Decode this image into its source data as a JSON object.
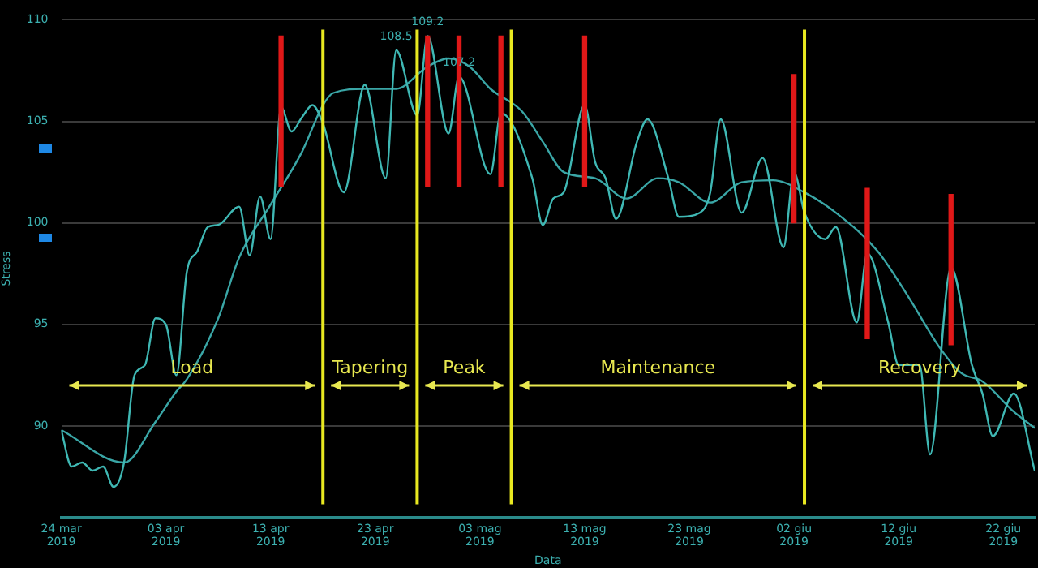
{
  "chart_data": {
    "type": "line",
    "xlabel": "Data",
    "ylabel": "Stress",
    "xlim": [
      "2019-03-24",
      "2019-06-25"
    ],
    "ylim": [
      85.5,
      110
    ],
    "xticks": [
      {
        "value": "2019-03-24",
        "label": "24 mar 2019"
      },
      {
        "value": "2019-04-03",
        "label": "03 apr 2019"
      },
      {
        "value": "2019-04-13",
        "label": "13 apr 2019"
      },
      {
        "value": "2019-04-23",
        "label": "23 apr 2019"
      },
      {
        "value": "2019-05-03",
        "label": "03 mag 2019"
      },
      {
        "value": "2019-05-13",
        "label": "13 mag 2019"
      },
      {
        "value": "2019-05-23",
        "label": "23 mag 2019"
      },
      {
        "value": "2019-06-02",
        "label": "02 giu 2019"
      },
      {
        "value": "2019-06-12",
        "label": "12 giu 2019"
      },
      {
        "value": "2019-06-22",
        "label": "22 giu 2019"
      }
    ],
    "yticks": [
      90,
      95,
      100,
      105,
      110
    ],
    "grid": "y",
    "marker": "none",
    "line_style": "solid",
    "series": [
      {
        "color": "#3fb8b4",
        "x": [
          "2019-03-24",
          "2019-03-25",
          "2019-03-26",
          "2019-03-27",
          "2019-03-28",
          "2019-03-29",
          "2019-03-30",
          "2019-03-31",
          "2019-04-01",
          "2019-04-02",
          "2019-04-03",
          "2019-04-04",
          "2019-04-05",
          "2019-04-06",
          "2019-04-07",
          "2019-04-08",
          "2019-04-10",
          "2019-04-11",
          "2019-04-12",
          "2019-04-13",
          "2019-04-14",
          "2019-04-15",
          "2019-04-16",
          "2019-04-17",
          "2019-04-18",
          "2019-04-20",
          "2019-04-22",
          "2019-04-24",
          "2019-04-25",
          "2019-04-27",
          "2019-04-28",
          "2019-04-30",
          "2019-05-01",
          "2019-05-04",
          "2019-05-05",
          "2019-05-08",
          "2019-05-09",
          "2019-05-10",
          "2019-05-11",
          "2019-05-13",
          "2019-05-14",
          "2019-05-15",
          "2019-05-16",
          "2019-05-18",
          "2019-05-19",
          "2019-05-21",
          "2019-05-22",
          "2019-05-24",
          "2019-05-25",
          "2019-05-26",
          "2019-05-28",
          "2019-05-30",
          "2019-06-01",
          "2019-06-02",
          "2019-06-03",
          "2019-06-05",
          "2019-06-06",
          "2019-06-08",
          "2019-06-09",
          "2019-06-11",
          "2019-06-12",
          "2019-06-14",
          "2019-06-15",
          "2019-06-17",
          "2019-06-19",
          "2019-06-20",
          "2019-06-21",
          "2019-06-23",
          "2019-06-25"
        ],
        "values": [
          89.8,
          88.0,
          88.2,
          87.8,
          88.0,
          87.0,
          88.2,
          92.5,
          93.0,
          95.3,
          95.0,
          92.5,
          97.6,
          98.6,
          99.8,
          99.9,
          100.8,
          98.4,
          101.3,
          99.2,
          105.7,
          104.5,
          105.2,
          105.8,
          104.9,
          101.5,
          106.8,
          102.2,
          108.5,
          105.3,
          109.2,
          104.4,
          107.2,
          102.4,
          105.4,
          102.2,
          99.9,
          101.2,
          101.5,
          105.8,
          103.0,
          102.2,
          100.2,
          104.0,
          105.1,
          102.2,
          100.3,
          100.5,
          101.5,
          105.1,
          100.5,
          103.2,
          98.8,
          102.5,
          100.5,
          99.2,
          99.8,
          95.1,
          98.5,
          95.1,
          93.0,
          93.0,
          88.6,
          97.8,
          93.0,
          91.6,
          89.5,
          91.6,
          87.8
        ]
      },
      {
        "color": "#3aa6a6",
        "x": [
          "2019-03-24",
          "2019-03-30",
          "2019-04-02",
          "2019-04-04",
          "2019-04-05",
          "2019-04-08",
          "2019-04-10",
          "2019-04-13",
          "2019-04-16",
          "2019-04-18",
          "2019-04-19",
          "2019-04-22",
          "2019-04-25",
          "2019-04-28",
          "2019-04-30",
          "2019-05-02",
          "2019-05-04",
          "2019-05-07",
          "2019-05-09",
          "2019-05-11",
          "2019-05-14",
          "2019-05-17",
          "2019-05-20",
          "2019-05-22",
          "2019-05-25",
          "2019-05-28",
          "2019-05-31",
          "2019-06-03",
          "2019-06-06",
          "2019-06-10",
          "2019-06-13",
          "2019-06-16",
          "2019-06-18",
          "2019-06-20",
          "2019-06-23",
          "2019-06-25"
        ],
        "values": [
          89.8,
          88.2,
          90.2,
          91.7,
          92.3,
          95.3,
          98.3,
          100.9,
          103.5,
          105.8,
          106.4,
          106.6,
          106.6,
          107.7,
          108.1,
          107.7,
          106.6,
          105.5,
          104.0,
          102.5,
          102.2,
          101.2,
          102.2,
          102.0,
          101.0,
          102.0,
          102.1,
          101.5,
          100.5,
          98.6,
          96.3,
          93.8,
          92.6,
          92.2,
          90.7,
          89.9
        ]
      },
      {
        "type": "bar",
        "color": "#e01818",
        "x": [
          "2019-04-14",
          "2019-04-28",
          "2019-05-01",
          "2019-05-05",
          "2019-05-13",
          "2019-06-02",
          "2019-06-09",
          "2019-06-17"
        ],
        "base": [
          101.8,
          101.8,
          101.8,
          101.8,
          101.8,
          100.0,
          94.3,
          94.0
        ],
        "values": [
          7.4,
          7.4,
          7.4,
          7.4,
          7.4,
          7.3,
          7.4,
          7.4
        ]
      }
    ],
    "ref_lines": [
      {
        "axis": "x",
        "value": "2019-04-18",
        "color": "#e8e820"
      },
      {
        "axis": "x",
        "value": "2019-04-27",
        "color": "#e8e820"
      },
      {
        "axis": "x",
        "value": "2019-05-06",
        "color": "#e8e820"
      },
      {
        "axis": "x",
        "value": "2019-06-03",
        "color": "#e8e820"
      }
    ],
    "annotations": [
      {
        "text": "108.5",
        "x": "2019-04-25",
        "y": 108.5
      },
      {
        "text": "109.2",
        "x": "2019-04-28",
        "y": 109.2
      },
      {
        "text": "107.2",
        "x": "2019-05-01",
        "y": 107.2
      },
      "Load",
      "Tapering",
      "Peak",
      "Maintenance",
      "Recovery"
    ]
  }
}
